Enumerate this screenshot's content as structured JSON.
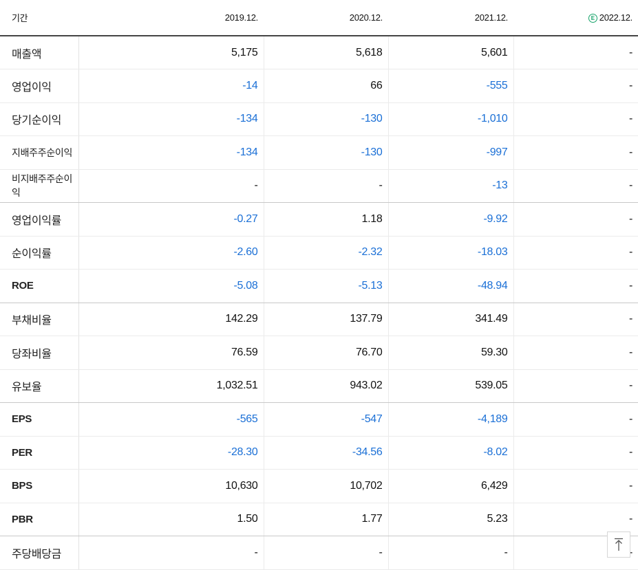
{
  "header": {
    "label": "기간",
    "periods": [
      "2019.12.",
      "2020.12.",
      "2021.12.",
      "2022.12."
    ],
    "estimate_badge": "E"
  },
  "rows": [
    {
      "label": "매출액",
      "values": [
        "5,175",
        "5,618",
        "5,601",
        "-"
      ],
      "negative": [
        false,
        false,
        false,
        false
      ]
    },
    {
      "label": "영업이익",
      "values": [
        "-14",
        "66",
        "-555",
        "-"
      ],
      "negative": [
        true,
        false,
        true,
        false
      ]
    },
    {
      "label": "당기순이익",
      "values": [
        "-134",
        "-130",
        "-1,010",
        "-"
      ],
      "negative": [
        true,
        true,
        true,
        false
      ]
    },
    {
      "label": "지배주주순이익",
      "values": [
        "-134",
        "-130",
        "-997",
        "-"
      ],
      "negative": [
        true,
        true,
        true,
        false
      ]
    },
    {
      "label": "비지배주주순이익",
      "values": [
        "-",
        "-",
        "-13",
        "-"
      ],
      "negative": [
        false,
        false,
        true,
        false
      ]
    },
    {
      "label": "영업이익률",
      "values": [
        "-0.27",
        "1.18",
        "-9.92",
        "-"
      ],
      "negative": [
        true,
        false,
        true,
        false
      ]
    },
    {
      "label": "순이익률",
      "values": [
        "-2.60",
        "-2.32",
        "-18.03",
        "-"
      ],
      "negative": [
        true,
        true,
        true,
        false
      ]
    },
    {
      "label": "ROE",
      "values": [
        "-5.08",
        "-5.13",
        "-48.94",
        "-"
      ],
      "negative": [
        true,
        true,
        true,
        false
      ]
    },
    {
      "label": "부채비율",
      "values": [
        "142.29",
        "137.79",
        "341.49",
        "-"
      ],
      "negative": [
        false,
        false,
        false,
        false
      ]
    },
    {
      "label": "당좌비율",
      "values": [
        "76.59",
        "76.70",
        "59.30",
        "-"
      ],
      "negative": [
        false,
        false,
        false,
        false
      ]
    },
    {
      "label": "유보율",
      "values": [
        "1,032.51",
        "943.02",
        "539.05",
        "-"
      ],
      "negative": [
        false,
        false,
        false,
        false
      ]
    },
    {
      "label": "EPS",
      "values": [
        "-565",
        "-547",
        "-4,189",
        "-"
      ],
      "negative": [
        true,
        true,
        true,
        false
      ]
    },
    {
      "label": "PER",
      "values": [
        "-28.30",
        "-34.56",
        "-8.02",
        "-"
      ],
      "negative": [
        true,
        true,
        true,
        false
      ]
    },
    {
      "label": "BPS",
      "values": [
        "10,630",
        "10,702",
        "6,429",
        "-"
      ],
      "negative": [
        false,
        false,
        false,
        false
      ]
    },
    {
      "label": "PBR",
      "values": [
        "1.50",
        "1.77",
        "5.23",
        "-"
      ],
      "negative": [
        false,
        false,
        false,
        false
      ]
    },
    {
      "label": "주당배당금",
      "values": [
        "-",
        "-",
        "-",
        "-"
      ],
      "negative": [
        false,
        false,
        false,
        false
      ]
    }
  ],
  "colors": {
    "negative": "#1a6fd6",
    "estimate": "#16a36a"
  },
  "scroll_top_icon": "arrow-up-to-top-icon"
}
